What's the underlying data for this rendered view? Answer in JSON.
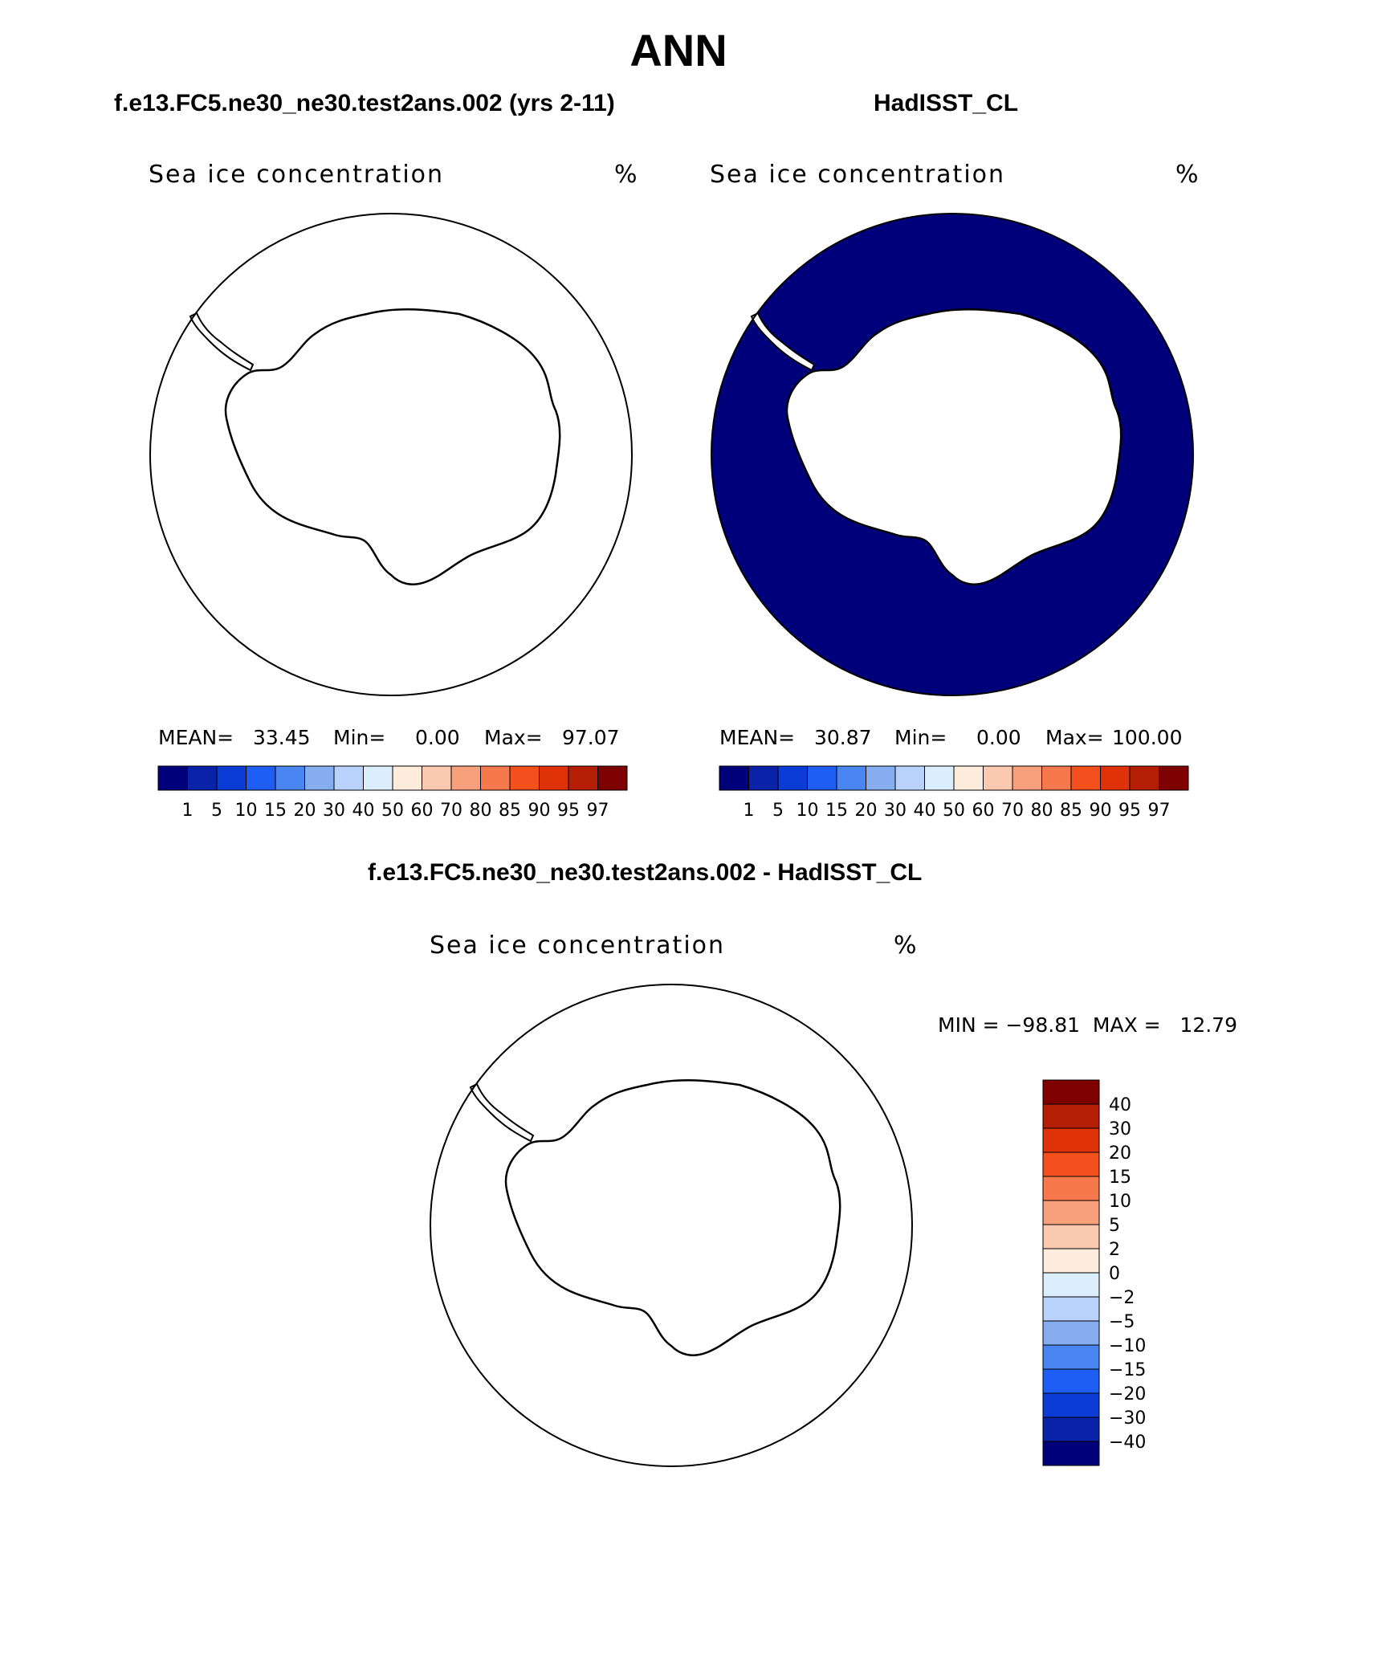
{
  "main_title": "ANN",
  "panels": {
    "model": {
      "case_title": "f.e13.FC5.ne30_ne30.test2ans.002 (yrs 2-11)",
      "plot_title": "Sea ice concentration",
      "units": "%",
      "mean_label": "MEAN=",
      "mean": "33.45",
      "min_label": "Min=",
      "min": "0.00",
      "max_label": "Max=",
      "max": "97.07"
    },
    "obs": {
      "case_title": "HadISST_CL",
      "plot_title": "Sea ice concentration",
      "units": "%",
      "mean_label": "MEAN=",
      "mean": "30.87",
      "min_label": "Min=",
      "min": "0.00",
      "max_label": "Max=",
      "max": "100.00"
    },
    "diff": {
      "case_title": "f.e13.FC5.ne30_ne30.test2ans.002 - HadISST_CL",
      "plot_title": "Sea ice concentration",
      "units": "%",
      "minmax": "MIN = −98.81  MAX =   12.79"
    }
  },
  "colorbar_levels": [
    "1",
    "5",
    "10",
    "15",
    "20",
    "30",
    "40",
    "50",
    "60",
    "70",
    "80",
    "85",
    "90",
    "95",
    "97"
  ],
  "colorbar_colors": [
    "#00007a",
    "#0a22a8",
    "#0b3cd6",
    "#1f5ef5",
    "#4a86f2",
    "#86adf0",
    "#b8d2fb",
    "#dceefc",
    "#fdebdb",
    "#fbc8b0",
    "#f8a07c",
    "#f7784c",
    "#f3501e",
    "#df3208",
    "#b31e04",
    "#7e0000"
  ],
  "diff_levels": [
    "40",
    "30",
    "20",
    "15",
    "10",
    "5",
    "2",
    "0",
    "−2",
    "−5",
    "−10",
    "−15",
    "−20",
    "−30",
    "−40"
  ],
  "diff_colors": [
    "#7e0000",
    "#b31e04",
    "#df3208",
    "#f3501e",
    "#f7784c",
    "#f8a07c",
    "#fbc8b0",
    "#fdebdb",
    "#dceefc",
    "#b8d2fb",
    "#86adf0",
    "#4a86f2",
    "#1f5ef5",
    "#0b3cd6",
    "#0a22a8",
    "#00007a"
  ]
}
